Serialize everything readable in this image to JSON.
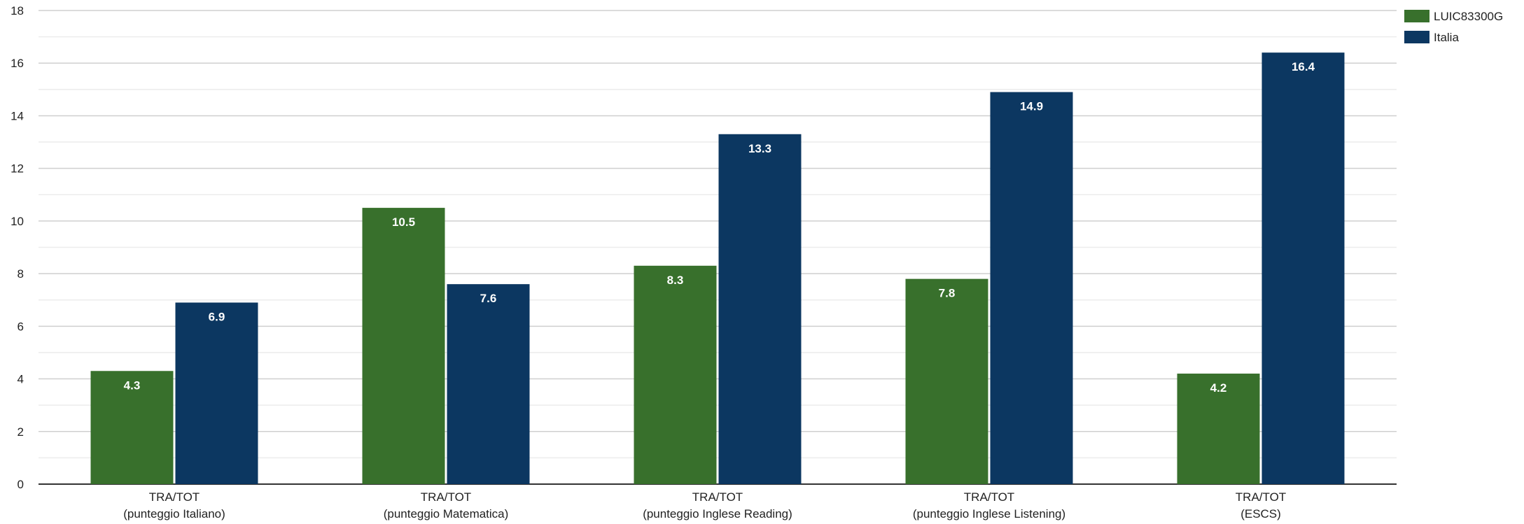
{
  "chart_data": {
    "type": "bar",
    "categories": [
      [
        "TRA/TOT",
        "(punteggio Italiano)"
      ],
      [
        "TRA/TOT",
        "(punteggio Matematica)"
      ],
      [
        "TRA/TOT",
        "(punteggio Inglese Reading)"
      ],
      [
        "TRA/TOT",
        "(punteggio Inglese Listening)"
      ],
      [
        "TRA/TOT",
        "(ESCS)"
      ]
    ],
    "series": [
      {
        "name": "LUIC83300G",
        "color": "#38702c",
        "values": [
          4.3,
          10.5,
          8.3,
          7.8,
          4.2
        ]
      },
      {
        "name": "Italia",
        "color": "#0c3761",
        "values": [
          6.9,
          7.6,
          13.3,
          14.9,
          16.4
        ]
      }
    ],
    "ylim": [
      0,
      18
    ],
    "yticks": [
      0,
      2,
      4,
      6,
      8,
      10,
      12,
      14,
      16,
      18
    ],
    "grid": true,
    "legend_position": "top-right",
    "title": "",
    "xlabel": "",
    "ylabel": ""
  }
}
